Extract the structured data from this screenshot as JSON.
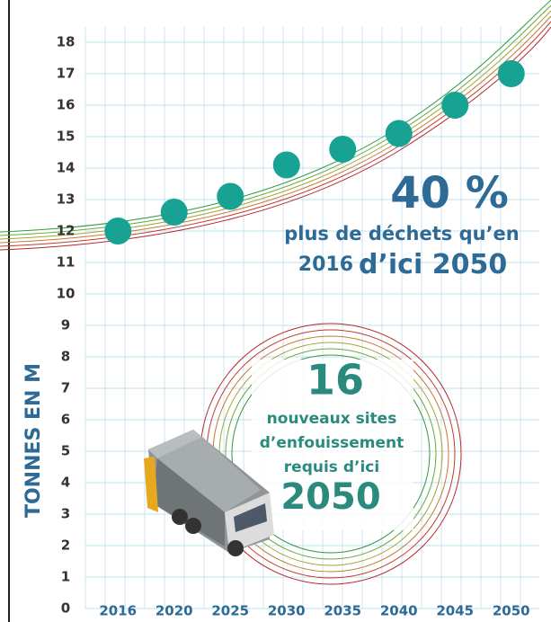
{
  "chart_data": {
    "type": "scatter",
    "y_axis_label": "TONNES EN M",
    "categories": [
      "2016",
      "2020",
      "2025",
      "2030",
      "2035",
      "2040",
      "2045",
      "2050"
    ],
    "values": [
      12,
      12.6,
      13.1,
      14.1,
      14.6,
      15.1,
      16,
      17
    ],
    "color": "#17a293",
    "ylim": [
      0,
      18
    ],
    "yticks": [
      0,
      1,
      2,
      3,
      4,
      5,
      6,
      7,
      8,
      9,
      10,
      11,
      12,
      13,
      14,
      15,
      16,
      17,
      18
    ],
    "grid": true,
    "annotations": {
      "headline": "40 %",
      "line1": "plus de déchets qu’en",
      "line2a": "2016",
      "line2b": "d’ici 2050",
      "sites_number": "16",
      "sites_line1": "nouveaux sites",
      "sites_line2": "d’enfouissement",
      "sites_line3": "requis d’ici",
      "sites_year": "2050"
    }
  }
}
